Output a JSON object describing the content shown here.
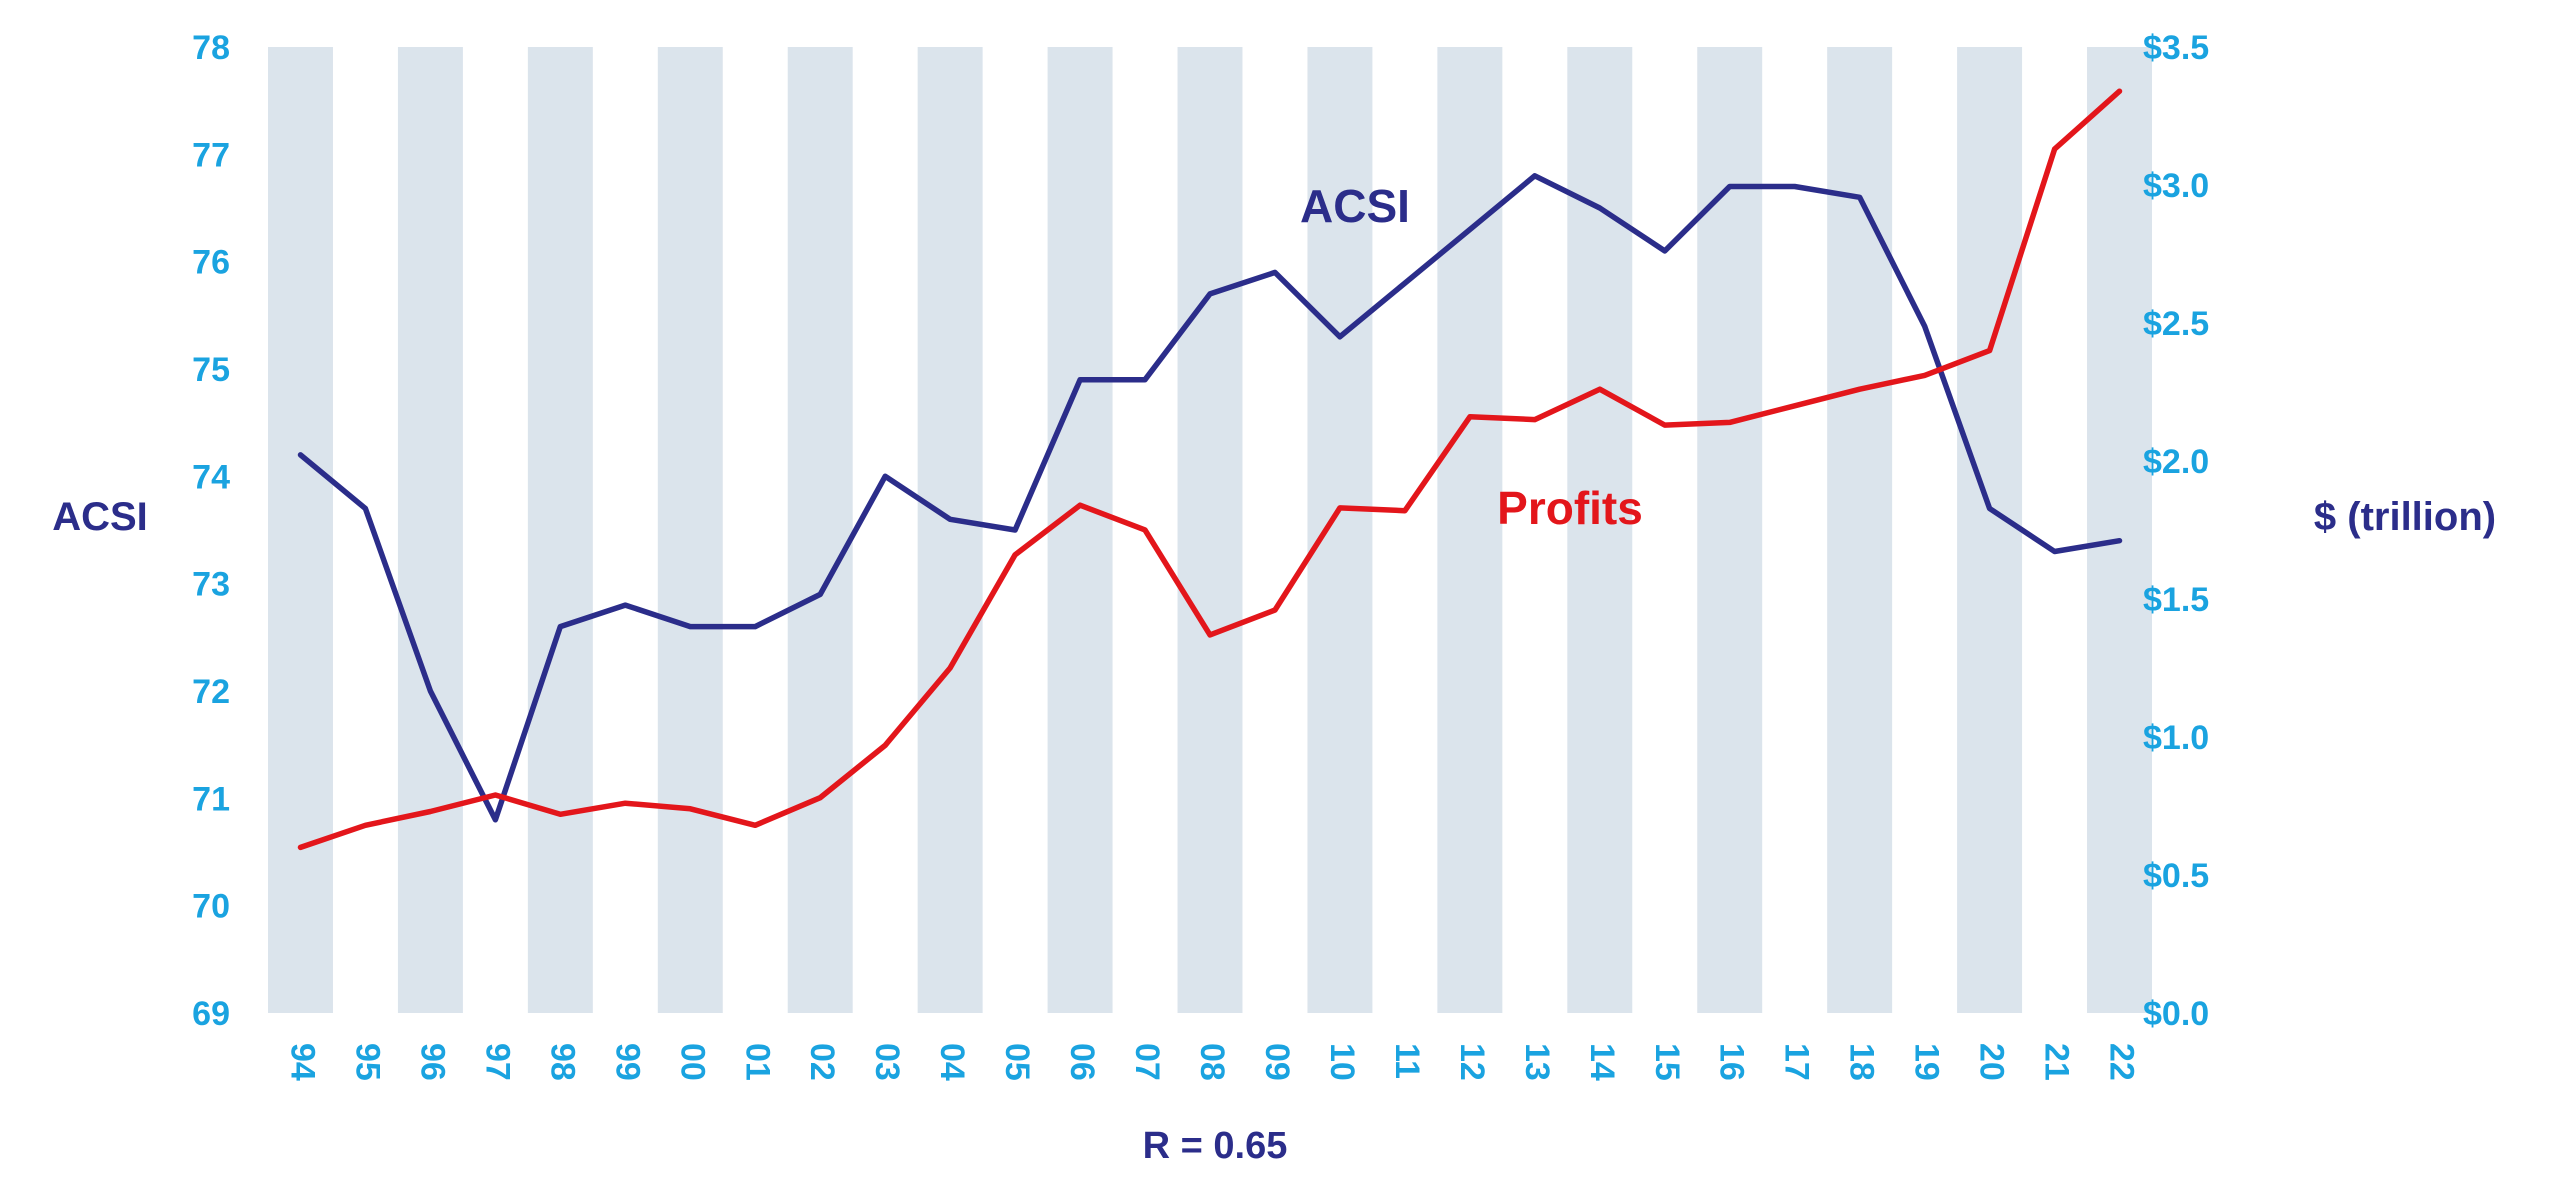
{
  "chart_data": {
    "type": "line",
    "categories": [
      "94",
      "95",
      "96",
      "97",
      "98",
      "99",
      "00",
      "01",
      "02",
      "03",
      "04",
      "05",
      "06",
      "07",
      "08",
      "09",
      "10",
      "11",
      "12",
      "13",
      "14",
      "15",
      "16",
      "17",
      "18",
      "19",
      "20",
      "21",
      "22"
    ],
    "series": [
      {
        "name": "ACSI",
        "axis": "left",
        "color": "#2b2d8a",
        "values": [
          74.2,
          73.7,
          72.0,
          70.8,
          72.6,
          72.8,
          72.6,
          72.6,
          72.9,
          74.0,
          73.6,
          73.5,
          74.9,
          74.9,
          75.7,
          75.9,
          75.3,
          75.8,
          76.3,
          76.8,
          76.5,
          76.1,
          76.7,
          76.7,
          76.6,
          75.4,
          73.7,
          73.3,
          73.4
        ]
      },
      {
        "name": "Profits",
        "axis": "right",
        "color": "#e3161b",
        "values": [
          0.6,
          0.68,
          0.73,
          0.79,
          0.72,
          0.76,
          0.74,
          0.68,
          0.78,
          0.97,
          1.25,
          1.66,
          1.84,
          1.75,
          1.37,
          1.46,
          1.83,
          1.82,
          2.16,
          2.15,
          2.26,
          2.13,
          2.14,
          2.2,
          2.26,
          2.31,
          2.4,
          3.13,
          3.34
        ]
      }
    ],
    "y_left": {
      "label": "ACSI",
      "range": [
        69,
        78
      ],
      "ticks": [
        "69",
        "70",
        "71",
        "72",
        "73",
        "74",
        "75",
        "76",
        "77",
        "78"
      ]
    },
    "y_right": {
      "label": "$ (trillion)",
      "range": [
        0,
        3.5
      ],
      "ticks": [
        "$0.0",
        "$0.5",
        "$1.0",
        "$1.5",
        "$2.0",
        "$2.5",
        "$3.0",
        "$3.5"
      ]
    },
    "annotation": "R = 0.65",
    "alternating_bands": true,
    "colors": {
      "tick": "#1aa3e0",
      "axis_title": "#2b2d8a",
      "band": "#dbe4ec"
    }
  }
}
